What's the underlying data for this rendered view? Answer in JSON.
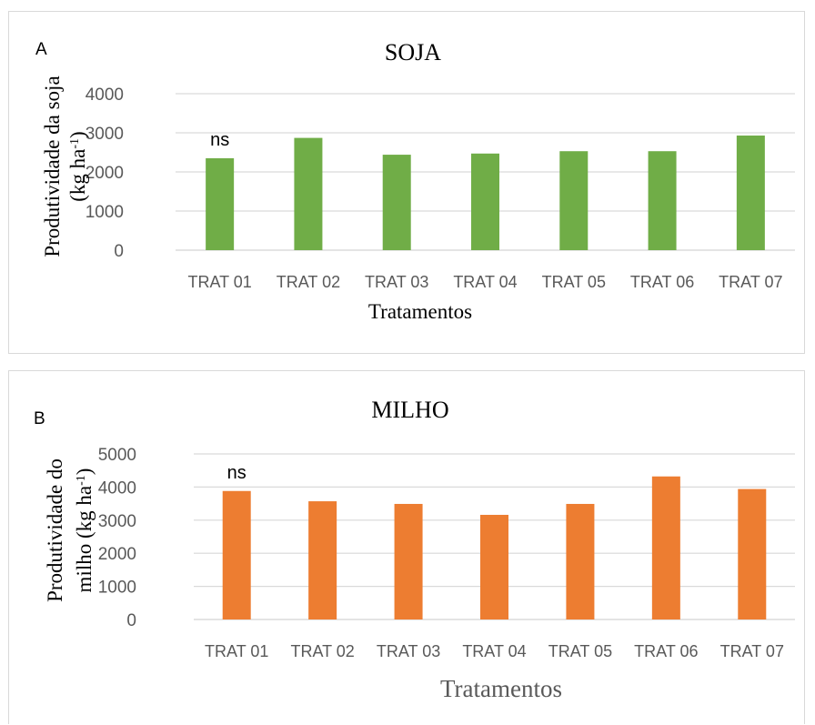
{
  "chart_data": [
    {
      "type": "bar",
      "panel_label": "A",
      "title": "SOJA",
      "annotation": "ns",
      "xlabel": "Tratamentos",
      "ylabel": "Produtividade da soja",
      "ylabel_line2": "(kg ha",
      "ylabel_sup": "-1",
      "ylabel_close": ")",
      "categories": [
        "TRAT 01",
        "TRAT 02",
        "TRAT 03",
        "TRAT 04",
        "TRAT 05",
        "TRAT 06",
        "TRAT 07"
      ],
      "values": [
        2350,
        2870,
        2440,
        2470,
        2530,
        2530,
        2930
      ],
      "ylim": [
        0,
        4000
      ],
      "yticks": [
        "0",
        "1000",
        "2000",
        "3000",
        "4000"
      ],
      "grid": true,
      "color": "#70AD47"
    },
    {
      "type": "bar",
      "panel_label": "B",
      "title": "MILHO",
      "annotation": "ns",
      "xlabel": "Tratamentos",
      "ylabel": "Produtividade do",
      "ylabel_line2": "milho (kg ha",
      "ylabel_sup": "-1",
      "ylabel_close": ")",
      "categories": [
        "TRAT 01",
        "TRAT 02",
        "TRAT 03",
        "TRAT 04",
        "TRAT 05",
        "TRAT 06",
        "TRAT 07"
      ],
      "values": [
        3880,
        3570,
        3490,
        3160,
        3490,
        4320,
        3940
      ],
      "ylim": [
        0,
        5000
      ],
      "yticks": [
        "0",
        "1000",
        "2000",
        "3000",
        "4000",
        "5000"
      ],
      "grid": true,
      "color": "#ED7D31"
    }
  ]
}
